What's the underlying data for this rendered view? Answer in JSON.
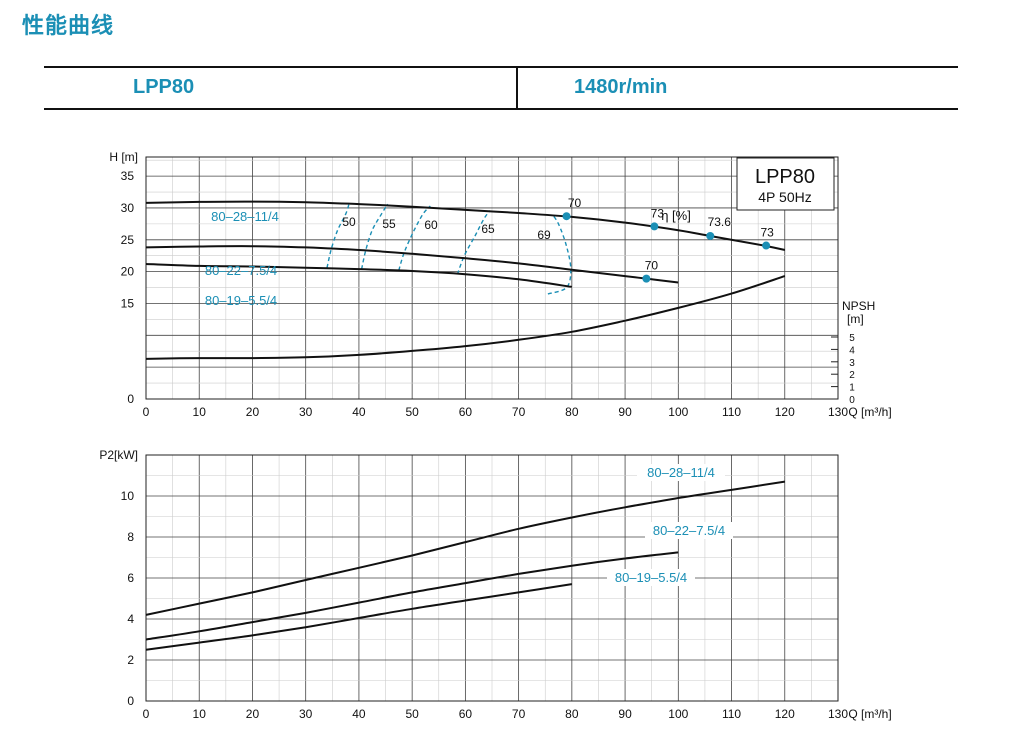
{
  "page_title": "性能曲线",
  "header": {
    "model": "LPP80",
    "speed": "1480r/min"
  },
  "colors": {
    "accent": "#1b8fb5",
    "curve": "#111111",
    "grid_major": "#444444",
    "grid_minor": "#cccccc"
  },
  "chart_data": [
    {
      "type": "line",
      "title": "LPP80",
      "subtitle": "4P  50Hz",
      "xlabel": "Q [m³/h]",
      "ylabel": "H [m]",
      "xlim": [
        0,
        130
      ],
      "ylim": [
        0,
        38
      ],
      "x_ticks": [
        0,
        10,
        20,
        30,
        40,
        50,
        60,
        70,
        80,
        90,
        100,
        110,
        120,
        130
      ],
      "y_ticks": [
        0,
        15,
        20,
        25,
        30,
        35
      ],
      "eta_label": "η [%]",
      "series": [
        {
          "name": "80–28–11/4",
          "role": "head",
          "x": [
            0,
            10,
            20,
            30,
            40,
            50,
            60,
            70,
            80,
            90,
            100,
            106,
            116,
            120
          ],
          "y": [
            30.8,
            30.95,
            31.0,
            30.9,
            30.6,
            30.2,
            29.7,
            29.2,
            28.6,
            27.7,
            26.5,
            25.6,
            24.1,
            23.4
          ]
        },
        {
          "name": "80–22–7.5/4",
          "role": "head",
          "x": [
            0,
            10,
            20,
            30,
            40,
            50,
            60,
            70,
            80,
            90,
            94,
            100
          ],
          "y": [
            23.8,
            23.95,
            24.0,
            23.8,
            23.4,
            22.8,
            22.1,
            21.3,
            20.3,
            19.3,
            18.9,
            18.3
          ]
        },
        {
          "name": "80–19–5.5/4",
          "role": "head",
          "x": [
            0,
            10,
            20,
            30,
            40,
            50,
            60,
            70,
            80
          ],
          "y": [
            21.2,
            20.9,
            20.8,
            20.6,
            20.4,
            20.1,
            19.6,
            18.8,
            17.6
          ]
        },
        {
          "name": "NPSH",
          "role": "npsh",
          "scale_label": "NPSH [m]",
          "scale_ticks": [
            0,
            1,
            2,
            3,
            4,
            5
          ],
          "x": [
            0,
            10,
            20,
            30,
            40,
            50,
            60,
            70,
            80,
            90,
            100,
            110,
            120
          ],
          "y": [
            1.8,
            1.85,
            1.85,
            1.9,
            2.05,
            2.3,
            2.6,
            3.0,
            3.5,
            4.2,
            5.0,
            5.9,
            7.0
          ]
        }
      ],
      "efficiency_contours": [
        {
          "label": "50",
          "x": [
            34,
            34.8,
            36,
            37.5,
            38.2
          ],
          "y": [
            20.6,
            23.5,
            26.5,
            29.0,
            30.8
          ]
        },
        {
          "label": "55",
          "x": [
            40.5,
            41.3,
            42.5,
            44.2,
            45.4
          ],
          "y": [
            20.4,
            23.4,
            26.5,
            29.0,
            30.6
          ]
        },
        {
          "label": "60",
          "x": [
            47.5,
            48.5,
            50.2,
            52,
            53.4
          ],
          "y": [
            20.2,
            23.0,
            26.2,
            29.0,
            30.3
          ]
        },
        {
          "label": "65",
          "x": [
            58.5,
            59.8,
            61.8,
            63.5,
            64.6
          ],
          "y": [
            19.6,
            22.5,
            25.6,
            28.3,
            29.6
          ]
        },
        {
          "label": "69",
          "x": [
            75.5,
            79,
            79.8,
            79.0,
            77.5,
            76.3
          ],
          "y": [
            16.5,
            17.5,
            20.3,
            24.0,
            27.5,
            29.0
          ]
        }
      ],
      "efficiency_points": [
        {
          "label": "70",
          "x": 79,
          "y": 28.7
        },
        {
          "label": "73",
          "x": 95.5,
          "y": 27.1
        },
        {
          "label": "73.6",
          "x": 106,
          "y": 25.6
        },
        {
          "label": "73",
          "x": 116.5,
          "y": 24.1
        },
        {
          "label": "70",
          "x": 94,
          "y": 18.9
        }
      ]
    },
    {
      "type": "line",
      "xlabel": "Q [m³/h]",
      "ylabel": "P2[kW]",
      "xlim": [
        0,
        130
      ],
      "ylim": [
        0,
        12
      ],
      "x_ticks": [
        0,
        10,
        20,
        30,
        40,
        50,
        60,
        70,
        80,
        90,
        100,
        110,
        120,
        130
      ],
      "y_ticks": [
        0,
        2,
        4,
        6,
        8,
        10
      ],
      "series": [
        {
          "name": "80–28–11/4",
          "x": [
            0,
            10,
            20,
            30,
            40,
            50,
            60,
            70,
            80,
            90,
            100,
            110,
            120
          ],
          "y": [
            4.2,
            4.75,
            5.3,
            5.9,
            6.5,
            7.1,
            7.75,
            8.4,
            8.95,
            9.45,
            9.9,
            10.3,
            10.7
          ]
        },
        {
          "name": "80–22–7.5/4",
          "x": [
            0,
            10,
            20,
            30,
            40,
            50,
            60,
            70,
            80,
            90,
            100
          ],
          "y": [
            3.0,
            3.4,
            3.85,
            4.3,
            4.8,
            5.3,
            5.75,
            6.2,
            6.6,
            6.95,
            7.25
          ]
        },
        {
          "name": "80–19–5.5/4",
          "x": [
            0,
            10,
            20,
            30,
            40,
            50,
            60,
            70,
            80
          ],
          "y": [
            2.5,
            2.85,
            3.2,
            3.6,
            4.05,
            4.5,
            4.9,
            5.3,
            5.7
          ]
        }
      ]
    }
  ]
}
